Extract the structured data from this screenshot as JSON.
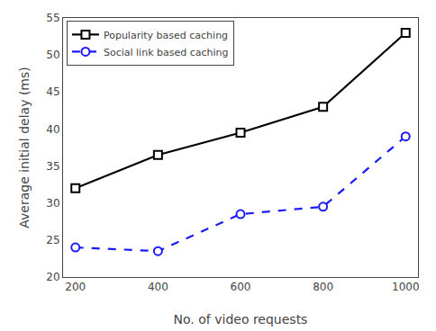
{
  "chart_data": {
    "type": "line",
    "x": [
      200,
      400,
      600,
      800,
      1000
    ],
    "series": [
      {
        "name": "Popularity based caching",
        "color": "#000000",
        "marker": "square",
        "line_style": "solid",
        "values": [
          32.0,
          36.5,
          39.5,
          43.0,
          53.0
        ]
      },
      {
        "name": "Social link based caching",
        "color": "#1a1aff",
        "marker": "circle",
        "line_style": "dashed",
        "values": [
          24.0,
          23.5,
          28.5,
          29.5,
          39.0
        ]
      }
    ],
    "x_label": "No. of video requests",
    "y_label": "Average initial delay (ms)",
    "xlim": [
      170,
      1030
    ],
    "ylim": [
      20,
      55
    ],
    "xticks": [
      200,
      400,
      600,
      800,
      1000
    ],
    "yticks": [
      20,
      25,
      30,
      35,
      40,
      45,
      50,
      55
    ],
    "legend": "upper left",
    "grid": false
  }
}
